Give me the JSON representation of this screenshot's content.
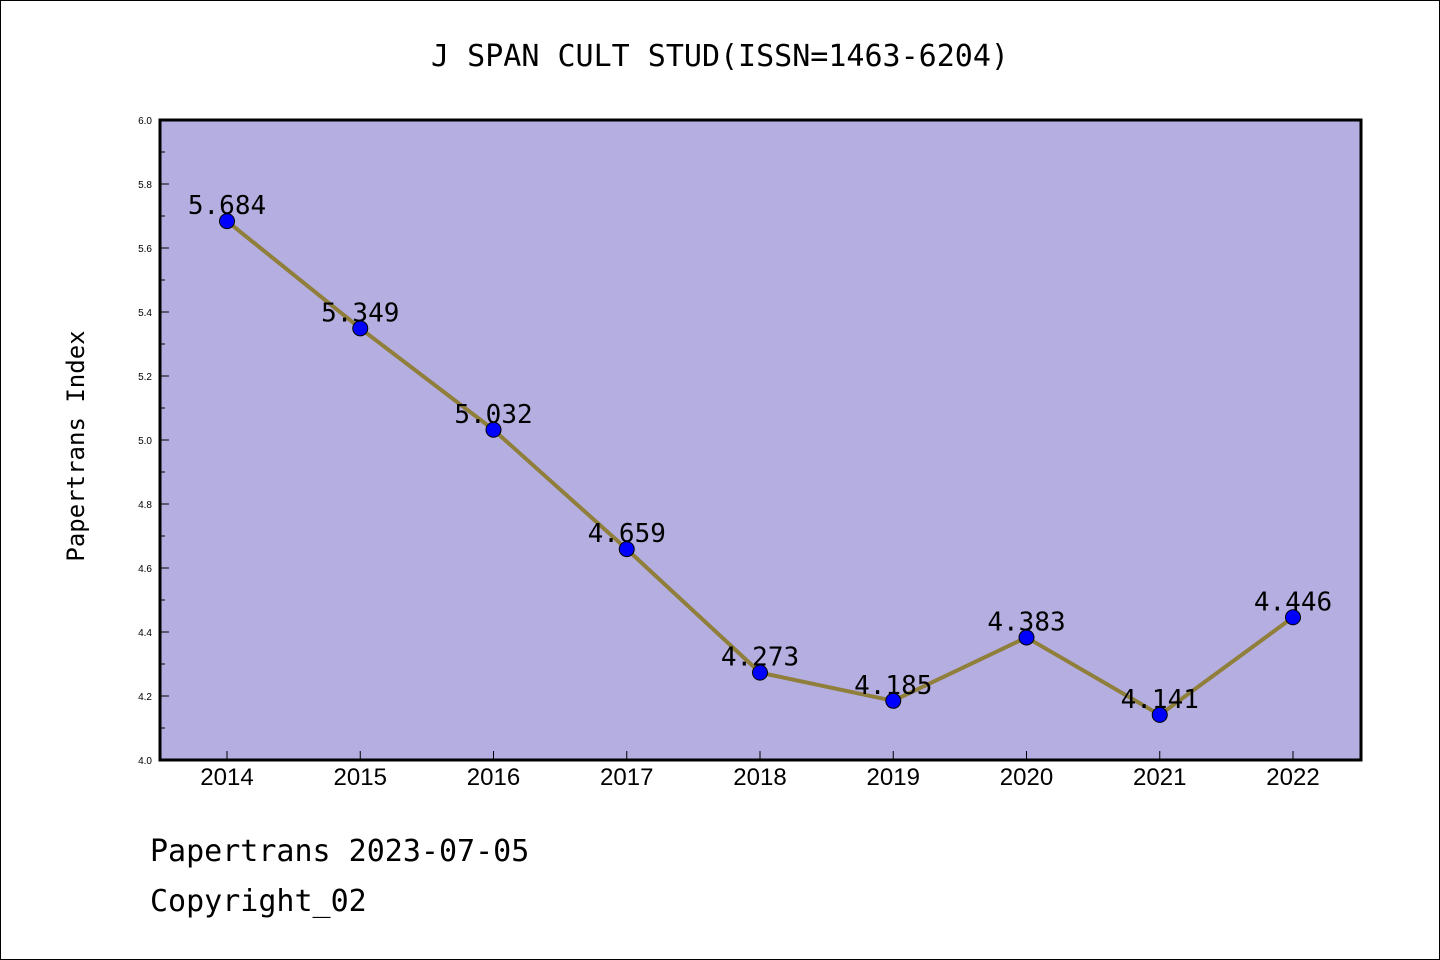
{
  "chart_data": {
    "type": "line",
    "title": "J SPAN CULT STUD(ISSN=1463-6204)",
    "xlabel": "",
    "ylabel": "Papertrans Index",
    "categories": [
      "2014",
      "2015",
      "2016",
      "2017",
      "2018",
      "2019",
      "2020",
      "2021",
      "2022"
    ],
    "values": [
      5.684,
      5.349,
      5.032,
      4.659,
      4.273,
      4.185,
      4.383,
      4.141,
      4.446
    ],
    "data_labels": [
      "5.684",
      "5.349",
      "5.032",
      "4.659",
      "4.273",
      "4.185",
      "4.383",
      "4.141",
      "4.446"
    ],
    "ylim": [
      4.0,
      6.0
    ],
    "yticks": [
      "4.0",
      "4.2",
      "4.4",
      "4.6",
      "4.8",
      "5.0",
      "5.2",
      "5.4",
      "5.6",
      "5.8",
      "6.0"
    ],
    "grid": false,
    "colors": {
      "plot_background": "#b5aee1",
      "line": "#8f7f3a",
      "marker": "#0000ff"
    }
  },
  "footer": {
    "source": "Papertrans 2023-07-05",
    "copyright": "Copyright_02"
  }
}
